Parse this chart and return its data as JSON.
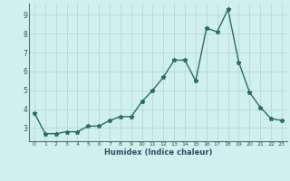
{
  "x": [
    0,
    1,
    2,
    3,
    4,
    5,
    6,
    7,
    8,
    9,
    10,
    11,
    12,
    13,
    14,
    15,
    16,
    17,
    18,
    19,
    20,
    21,
    22,
    23
  ],
  "y": [
    3.8,
    2.7,
    2.7,
    2.8,
    2.8,
    3.1,
    3.1,
    3.4,
    3.6,
    3.6,
    4.4,
    5.0,
    5.7,
    6.6,
    6.6,
    5.5,
    8.3,
    8.1,
    9.3,
    6.5,
    4.9,
    4.1,
    3.5,
    3.4
  ],
  "xlabel": "Humidex (Indice chaleur)",
  "xlim": [
    -0.5,
    23.5
  ],
  "ylim": [
    2.3,
    9.6
  ],
  "yticks": [
    3,
    4,
    5,
    6,
    7,
    8,
    9
  ],
  "xticks": [
    0,
    1,
    2,
    3,
    4,
    5,
    6,
    7,
    8,
    9,
    10,
    11,
    12,
    13,
    14,
    15,
    16,
    17,
    18,
    19,
    20,
    21,
    22,
    23
  ],
  "line_color": "#2e6b5e",
  "marker": "*",
  "marker_size": 3.5,
  "bg_color": "#cff0ec",
  "grid_color": "#b8d8d4",
  "tick_label_color": "#2e5060",
  "xlabel_color": "#2e5060",
  "axis_color": "#607070"
}
